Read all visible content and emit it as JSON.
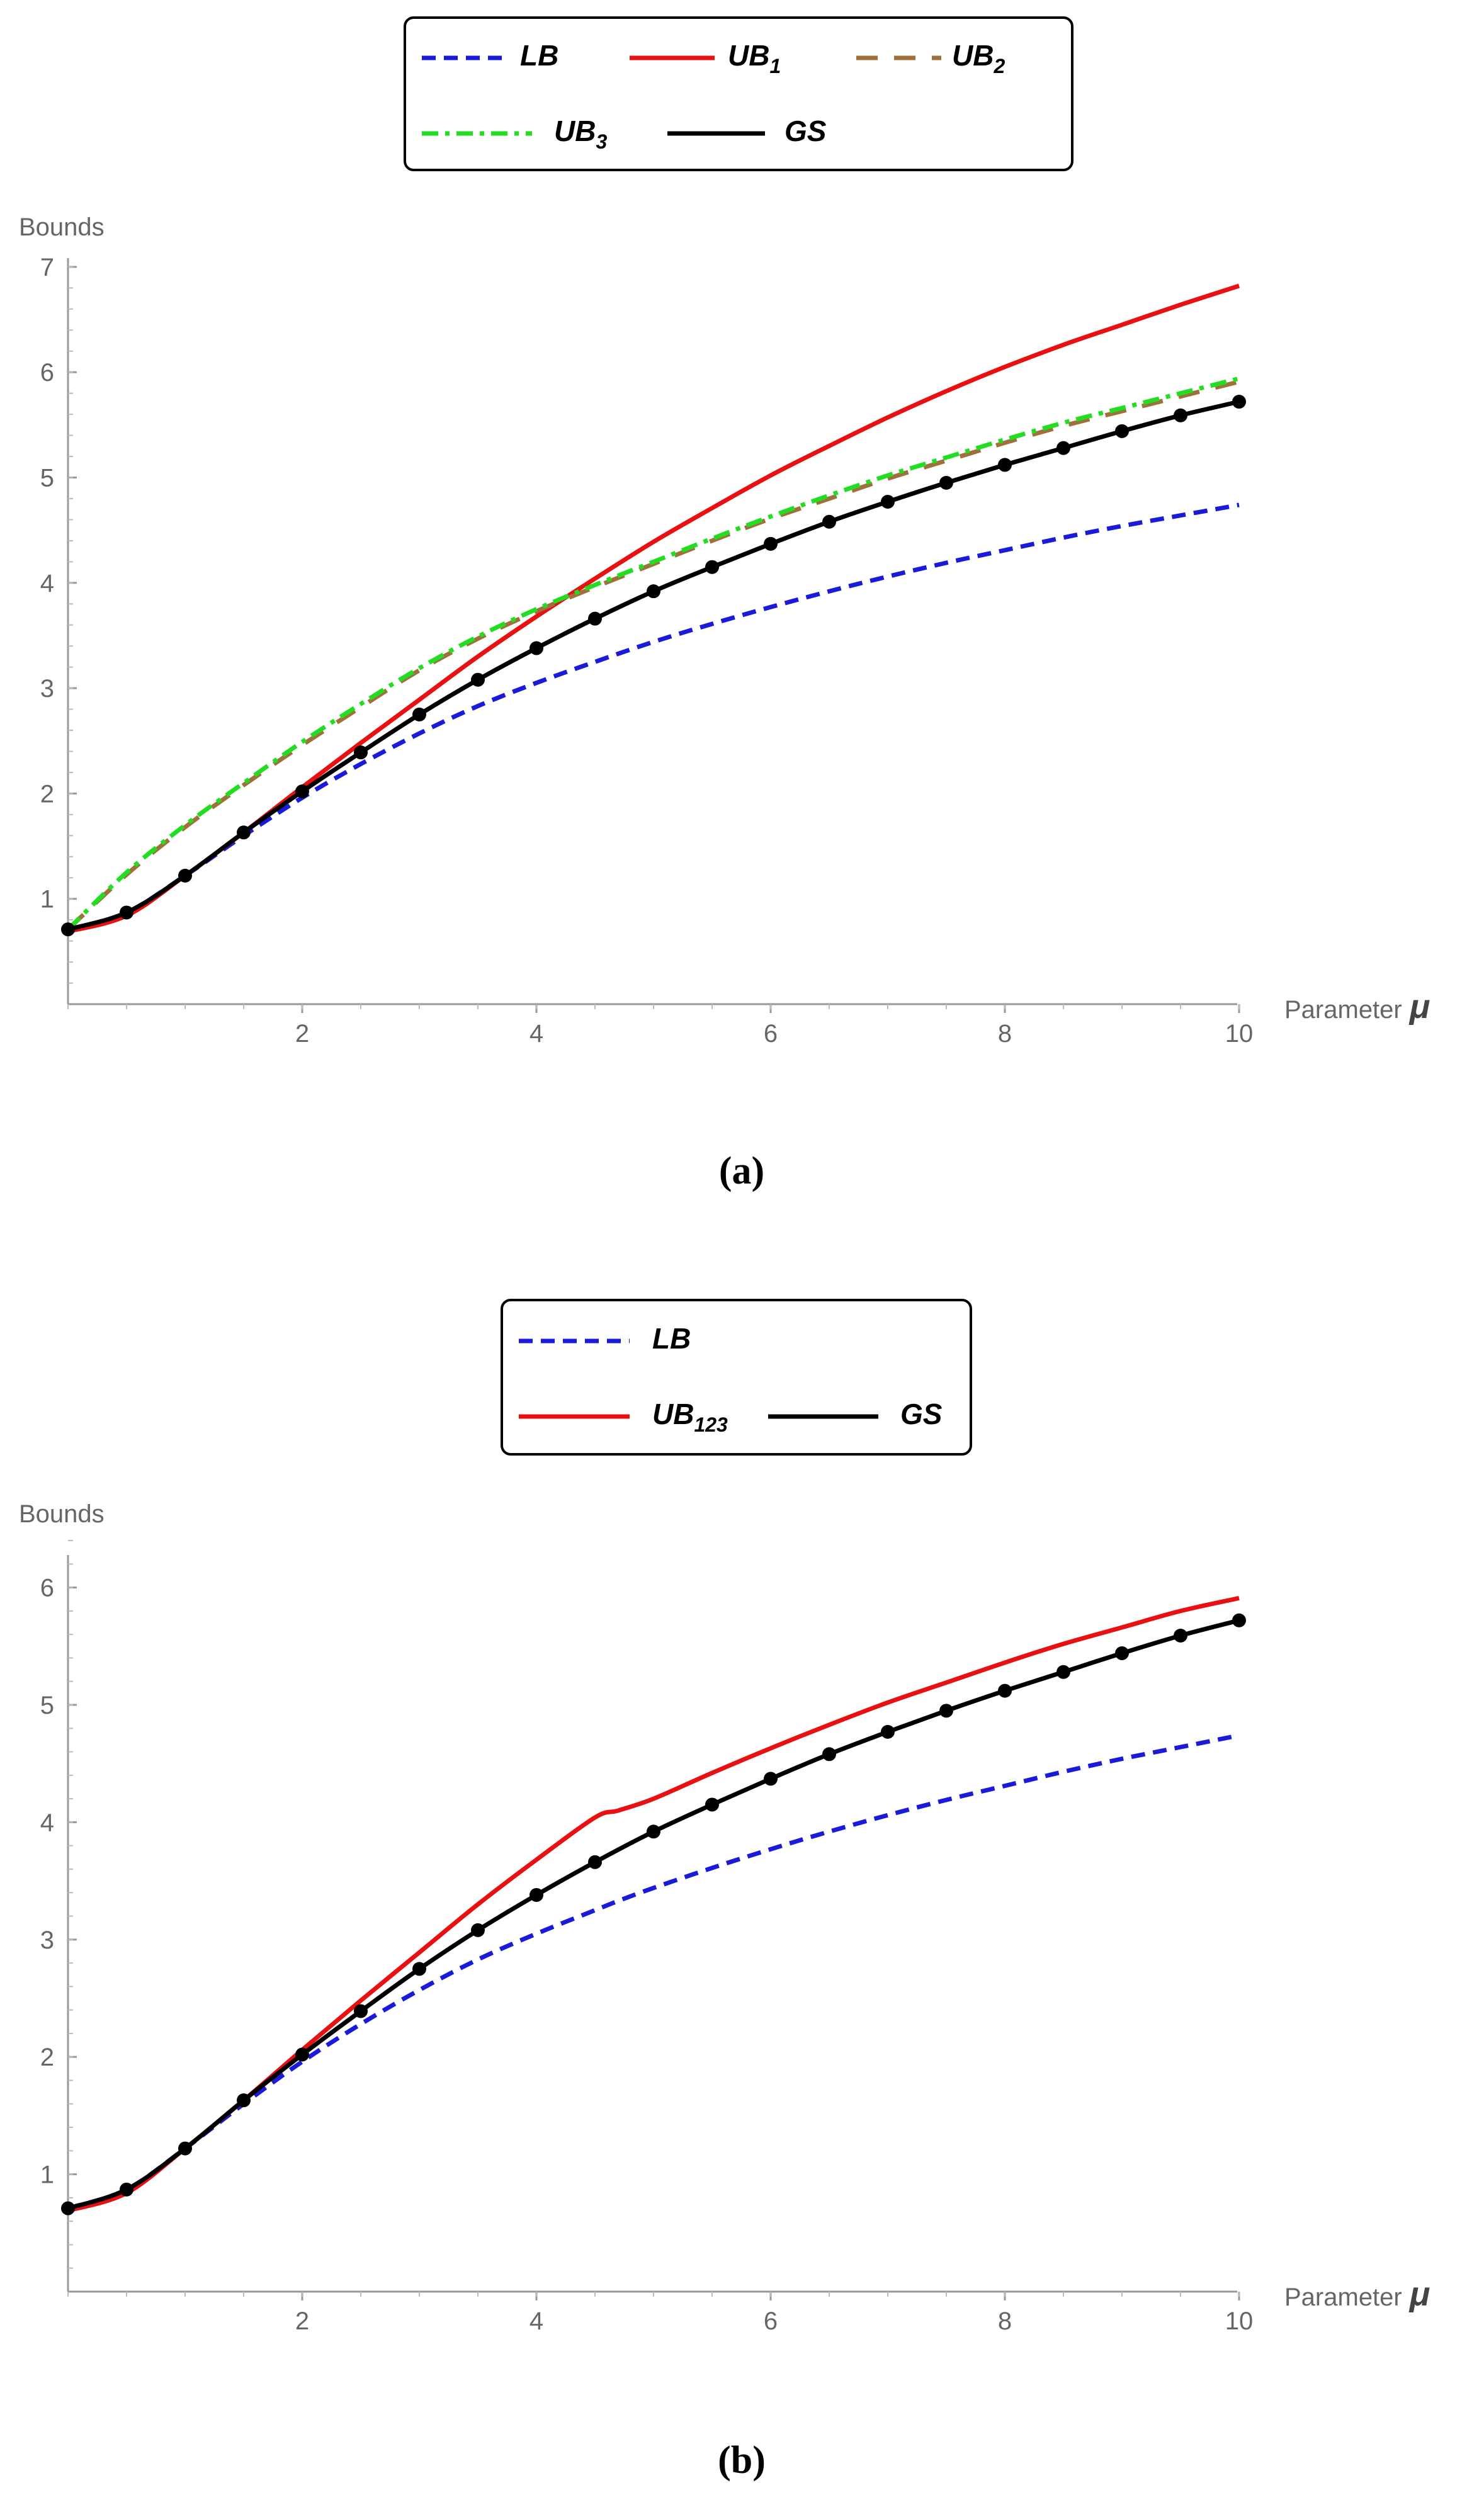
{
  "colors": {
    "LB": "#1a1adb",
    "UB1": "#e81010",
    "UB2": "#a0703a",
    "UB3": "#22dd22",
    "GS": "#000000",
    "UB123": "#e81010",
    "axis": "#999999"
  },
  "chart_data": [
    {
      "type": "line",
      "caption_letter": "a",
      "xlabel": "Parameter",
      "xsymbol": "μ",
      "ylabel": "Bounds",
      "xlim": [
        0,
        10
      ],
      "ylim": [
        0,
        7
      ],
      "xticks": [
        2,
        4,
        6,
        8,
        10
      ],
      "yticks": [
        1,
        2,
        3,
        4,
        5,
        6,
        7
      ],
      "legend": {
        "position": "top-center",
        "entries": [
          {
            "key": "LB",
            "base": "LB",
            "sub": "",
            "style": "dashed"
          },
          {
            "key": "UB1",
            "base": "UB",
            "sub": "1",
            "style": "solid"
          },
          {
            "key": "UB2",
            "base": "UB",
            "sub": "2",
            "style": "long-dashed"
          },
          {
            "key": "UB3",
            "base": "UB",
            "sub": "3",
            "style": "dash-dot"
          },
          {
            "key": "GS",
            "base": "GS",
            "sub": "",
            "style": "solid"
          }
        ]
      },
      "x": [
        0,
        0.5,
        1,
        1.5,
        2,
        2.5,
        3,
        3.5,
        4,
        4.5,
        5,
        5.5,
        6,
        6.5,
        7,
        7.5,
        8,
        8.5,
        9,
        9.5,
        10
      ],
      "series": [
        {
          "key": "LB",
          "name": "LB",
          "values": [
            0.71,
            0.87,
            1.22,
            1.6,
            1.96,
            2.28,
            2.57,
            2.83,
            3.05,
            3.25,
            3.44,
            3.61,
            3.77,
            3.92,
            4.06,
            4.19,
            4.31,
            4.43,
            4.54,
            4.64,
            4.74
          ]
        },
        {
          "key": "UB1",
          "name": "UB1",
          "values": [
            0.69,
            0.84,
            1.22,
            1.63,
            2.06,
            2.48,
            2.89,
            3.3,
            3.68,
            4.04,
            4.39,
            4.71,
            5.02,
            5.3,
            5.57,
            5.82,
            6.05,
            6.26,
            6.45,
            6.64,
            6.82
          ]
        },
        {
          "key": "UB2",
          "name": "UB2",
          "values": [
            0.71,
            1.23,
            1.68,
            2.08,
            2.46,
            2.82,
            3.17,
            3.47,
            3.73,
            3.96,
            4.18,
            4.4,
            4.61,
            4.8,
            4.99,
            5.16,
            5.33,
            5.49,
            5.63,
            5.77,
            5.91
          ]
        },
        {
          "key": "UB3",
          "name": "UB3",
          "values": [
            0.71,
            1.25,
            1.7,
            2.1,
            2.49,
            2.85,
            3.19,
            3.49,
            3.75,
            3.98,
            4.2,
            4.42,
            4.63,
            4.83,
            5.02,
            5.19,
            5.36,
            5.52,
            5.66,
            5.8,
            5.94
          ]
        },
        {
          "key": "GS",
          "name": "GS",
          "markers": true,
          "values": [
            0.71,
            0.87,
            1.22,
            1.63,
            2.02,
            2.39,
            2.75,
            3.08,
            3.38,
            3.66,
            3.92,
            4.15,
            4.37,
            4.58,
            4.77,
            4.95,
            5.12,
            5.28,
            5.44,
            5.59,
            5.72
          ]
        }
      ]
    },
    {
      "type": "line",
      "caption_letter": "b",
      "xlabel": "Parameter",
      "xsymbol": "μ",
      "ylabel": "Bounds",
      "xlim": [
        0,
        10
      ],
      "ylim": [
        0,
        6.4
      ],
      "xticks": [
        2,
        4,
        6,
        8,
        10
      ],
      "yticks": [
        1,
        2,
        3,
        4,
        5,
        6
      ],
      "legend": {
        "position": "top-center",
        "entries": [
          {
            "key": "LB",
            "base": "LB",
            "sub": "",
            "style": "dashed"
          },
          {
            "key": "UB123",
            "base": "UB",
            "sub": "123",
            "style": "solid"
          },
          {
            "key": "GS",
            "base": "GS",
            "sub": "",
            "style": "solid"
          }
        ]
      },
      "x": [
        0,
        0.5,
        1,
        1.5,
        2,
        2.5,
        3,
        3.5,
        4,
        4.5,
        4.7,
        5,
        5.5,
        6,
        6.5,
        7,
        7.5,
        8,
        8.5,
        9,
        9.5,
        10
      ],
      "series": [
        {
          "key": "LB",
          "name": "LB",
          "values": [
            0.71,
            0.87,
            1.22,
            1.6,
            1.96,
            2.28,
            2.57,
            2.83,
            3.05,
            3.25,
            3.33,
            3.44,
            3.61,
            3.77,
            3.92,
            4.06,
            4.19,
            4.31,
            4.43,
            4.54,
            4.64,
            4.74
          ]
        },
        {
          "key": "UB123",
          "name": "UB123",
          "values": [
            0.69,
            0.84,
            1.22,
            1.63,
            2.06,
            2.48,
            2.89,
            3.3,
            3.68,
            4.04,
            4.1,
            4.2,
            4.42,
            4.63,
            4.83,
            5.02,
            5.19,
            5.36,
            5.52,
            5.66,
            5.8,
            5.91
          ]
        },
        {
          "key": "GS",
          "name": "GS",
          "markers": true,
          "values": [
            0.71,
            0.87,
            1.22,
            1.63,
            2.02,
            2.39,
            2.75,
            3.08,
            3.38,
            3.66,
            null,
            3.92,
            4.15,
            4.37,
            4.58,
            4.77,
            4.95,
            5.12,
            5.28,
            5.44,
            5.59,
            5.72
          ]
        }
      ]
    }
  ]
}
